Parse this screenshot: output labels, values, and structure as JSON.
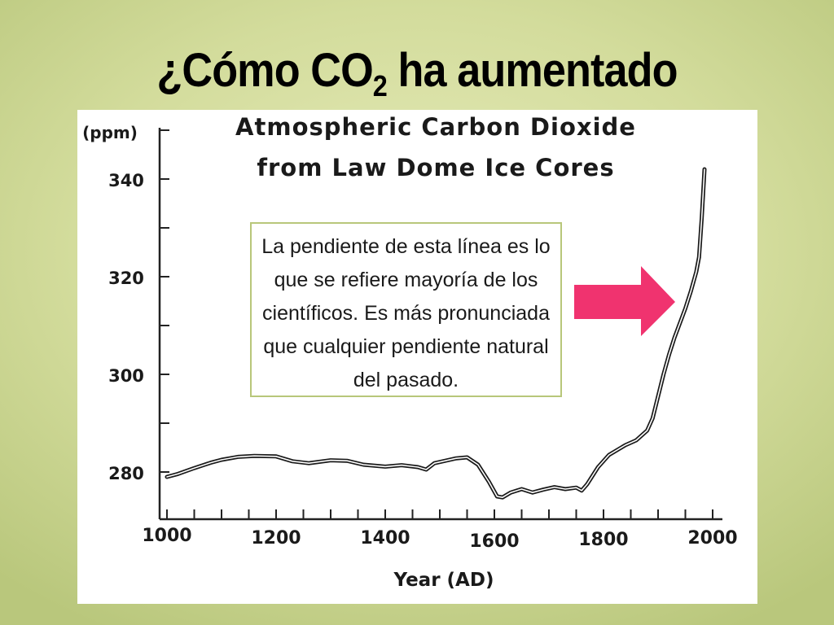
{
  "slide": {
    "title_prefix": "¿Cómo CO",
    "title_subscript": "2",
    "title_suffix": " ha aumentado"
  },
  "annotation": {
    "text": "La pendiente de esta línea es lo que se refiere mayoría de los científicos. Es más pronunciada que cualquier pendiente natural del pasado."
  },
  "colors": {
    "background": "#d3dc9c",
    "arrow": "#f0336f",
    "annotation_border": "#b8c77a",
    "line": "#1a1a1a"
  },
  "icons": {
    "arrow": "right-arrow-icon"
  },
  "chart_data": {
    "type": "line",
    "title": "Atmospheric Carbon Dioxide",
    "subtitle": "from Law Dome Ice Cores",
    "xlabel": "Year (AD)",
    "ylabel": "(ppm)",
    "xlim": [
      1000,
      2000
    ],
    "ylim": [
      270,
      350
    ],
    "x_ticks": [
      1000,
      1200,
      1400,
      1600,
      1800,
      2000
    ],
    "y_ticks": [
      280,
      300,
      320,
      340
    ],
    "grid": false,
    "legend": "none",
    "series": [
      {
        "x": [
          1000,
          1020,
          1050,
          1080,
          1100,
          1130,
          1160,
          1200,
          1230,
          1260,
          1300,
          1330,
          1360,
          1400,
          1430,
          1460,
          1475,
          1490,
          1510,
          1530,
          1550,
          1570,
          1590,
          1605,
          1615,
          1630,
          1650,
          1670,
          1690,
          1710,
          1730,
          1750,
          1760,
          1770,
          1790,
          1810,
          1840,
          1860,
          1880,
          1890,
          1900,
          1910,
          1920,
          1930,
          1940,
          1950,
          1960,
          1970,
          1975,
          1980,
          1985
        ],
        "values": [
          279.0,
          279.6,
          280.8,
          281.9,
          282.5,
          283.1,
          283.3,
          283.2,
          282.2,
          281.8,
          282.4,
          282.3,
          281.5,
          281.1,
          281.4,
          281.0,
          280.5,
          281.8,
          282.3,
          282.8,
          283.0,
          281.5,
          278.0,
          275.0,
          274.8,
          275.8,
          276.5,
          275.8,
          276.4,
          276.9,
          276.5,
          276.8,
          276.2,
          277.5,
          281.0,
          283.5,
          285.5,
          286.5,
          288.5,
          291.0,
          295.5,
          300.0,
          304.0,
          307.5,
          310.5,
          313.5,
          317.0,
          321.0,
          324.0,
          332.0,
          342.0
        ]
      }
    ]
  }
}
